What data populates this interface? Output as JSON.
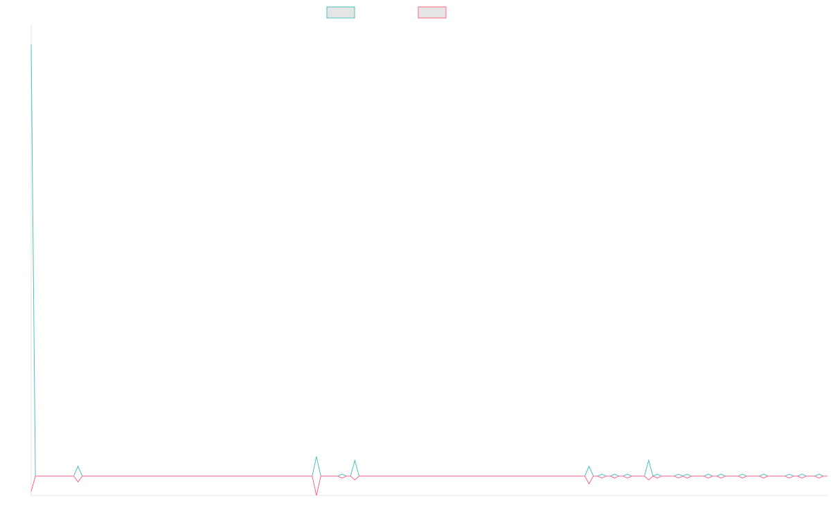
{
  "chart_data": {
    "type": "line",
    "title": "",
    "xlabel": "",
    "ylabel": "",
    "legend_position": "top-center",
    "grid": false,
    "series": [
      {
        "color": "#4bc0c0",
        "fill": "#e5e5e5",
        "values": [
          220,
          0,
          0,
          0,
          0,
          0,
          0,
          0,
          0,
          0,
          0,
          5,
          0,
          0,
          0,
          0,
          0,
          0,
          0,
          0,
          0,
          0,
          0,
          0,
          0,
          0,
          0,
          0,
          0,
          0,
          0,
          0,
          0,
          0,
          0,
          0,
          0,
          0,
          0,
          0,
          0,
          0,
          0,
          0,
          0,
          0,
          0,
          0,
          0,
          0,
          0,
          0,
          0,
          0,
          0,
          0,
          0,
          0,
          0,
          0,
          0,
          0,
          0,
          0,
          0,
          0,
          0,
          10,
          0,
          0,
          0,
          0,
          0,
          1,
          0,
          0,
          8,
          0,
          0,
          0,
          0,
          0,
          0,
          0,
          0,
          0,
          0,
          0,
          0,
          0,
          0,
          0,
          0,
          0,
          0,
          0,
          0,
          0,
          0,
          0,
          0,
          0,
          0,
          0,
          0,
          0,
          0,
          0,
          0,
          0,
          0,
          0,
          0,
          0,
          0,
          0,
          0,
          0,
          0,
          0,
          0,
          0,
          0,
          0,
          0,
          0,
          0,
          0,
          0,
          0,
          0,
          5,
          0,
          0,
          1,
          0,
          0,
          1,
          0,
          0,
          1,
          0,
          0,
          0,
          0,
          8,
          0,
          1,
          0,
          0,
          0,
          0,
          1,
          0,
          1,
          0,
          0,
          0,
          0,
          1,
          0,
          0,
          1,
          0,
          0,
          0,
          0,
          1,
          0,
          0,
          0,
          0,
          1,
          0,
          0,
          0,
          0,
          0,
          1,
          0,
          0,
          1,
          0,
          0,
          0,
          1,
          0,
          0
        ]
      },
      {
        "color": "#ff6384",
        "fill": "#e5e5e5",
        "values": [
          -8,
          0,
          0,
          0,
          0,
          0,
          0,
          0,
          0,
          0,
          0,
          -3,
          0,
          0,
          0,
          0,
          0,
          0,
          0,
          0,
          0,
          0,
          0,
          0,
          0,
          0,
          0,
          0,
          0,
          0,
          0,
          0,
          0,
          0,
          0,
          0,
          0,
          0,
          0,
          0,
          0,
          0,
          0,
          0,
          0,
          0,
          0,
          0,
          0,
          0,
          0,
          0,
          0,
          0,
          0,
          0,
          0,
          0,
          0,
          0,
          0,
          0,
          0,
          0,
          0,
          0,
          0,
          -10,
          0,
          0,
          0,
          0,
          0,
          -1,
          0,
          0,
          -2,
          0,
          0,
          0,
          0,
          0,
          0,
          0,
          0,
          0,
          0,
          0,
          0,
          0,
          0,
          0,
          0,
          0,
          0,
          0,
          0,
          0,
          0,
          0,
          0,
          0,
          0,
          0,
          0,
          0,
          0,
          0,
          0,
          0,
          0,
          0,
          0,
          0,
          0,
          0,
          0,
          0,
          0,
          0,
          0,
          0,
          0,
          0,
          0,
          0,
          0,
          0,
          0,
          0,
          0,
          -4,
          0,
          0,
          -1,
          0,
          0,
          -1,
          0,
          0,
          -1,
          0,
          0,
          0,
          0,
          -2,
          0,
          -1,
          0,
          0,
          0,
          0,
          -1,
          0,
          -1,
          0,
          0,
          0,
          0,
          -1,
          0,
          0,
          -1,
          0,
          0,
          0,
          0,
          -1,
          0,
          0,
          0,
          0,
          -1,
          0,
          0,
          0,
          0,
          0,
          -1,
          0,
          0,
          -1,
          0,
          0,
          0,
          -1,
          0,
          0
        ]
      }
    ],
    "ylim": [
      -10,
      230
    ]
  }
}
